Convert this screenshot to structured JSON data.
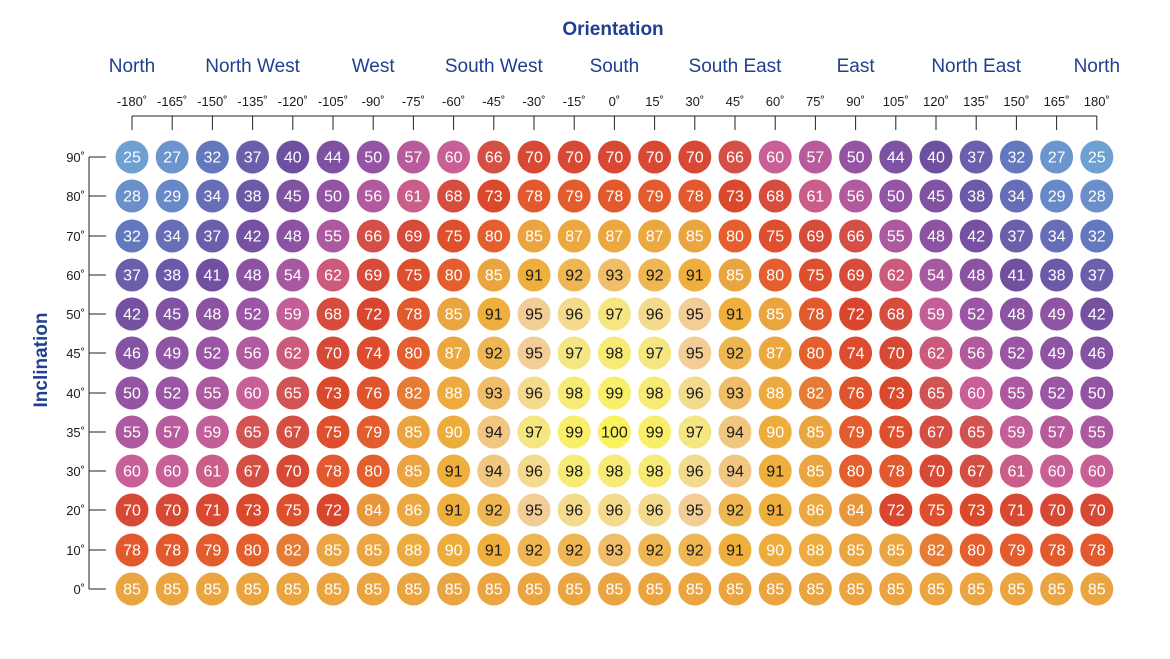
{
  "chart_data": {
    "type": "heatmap",
    "title": "Orientation",
    "ylabel": "Inclination",
    "direction_labels": [
      {
        "label": "North",
        "at": -180
      },
      {
        "label": "North West",
        "at": -135
      },
      {
        "label": "West",
        "at": -90
      },
      {
        "label": "South West",
        "at": -45
      },
      {
        "label": "South",
        "at": 0
      },
      {
        "label": "South East",
        "at": 45
      },
      {
        "label": "East",
        "at": 90
      },
      {
        "label": "North East",
        "at": 135
      },
      {
        "label": "North",
        "at": 180
      }
    ],
    "x": [
      -180,
      -165,
      -150,
      -135,
      -120,
      -105,
      -90,
      -75,
      -60,
      -45,
      -30,
      -15,
      0,
      15,
      30,
      45,
      60,
      75,
      90,
      105,
      120,
      135,
      150,
      165,
      180
    ],
    "x_labels": [
      "-180˚",
      "-165˚",
      "-150˚",
      "-135˚",
      "-120˚",
      "-105˚",
      "-90˚",
      "-75˚",
      "-60˚",
      "-45˚",
      "-30˚",
      "-15˚",
      "0˚",
      "15˚",
      "30˚",
      "45˚",
      "60˚",
      "75˚",
      "90˚",
      "105˚",
      "120˚",
      "135˚",
      "150˚",
      "165˚",
      "180˚"
    ],
    "y": [
      90,
      80,
      70,
      60,
      50,
      45,
      40,
      35,
      30,
      20,
      10,
      0
    ],
    "y_labels": [
      "90˚",
      "80˚",
      "70˚",
      "60˚",
      "50˚",
      "45˚",
      "40˚",
      "35˚",
      "30˚",
      "20˚",
      "10˚",
      "0˚"
    ],
    "values": [
      [
        25,
        27,
        32,
        37,
        40,
        44,
        50,
        57,
        60,
        66,
        70,
        70,
        70,
        70,
        70,
        66,
        60,
        57,
        50,
        44,
        40,
        37,
        32,
        27,
        25
      ],
      [
        28,
        29,
        34,
        38,
        45,
        50,
        56,
        61,
        68,
        73,
        78,
        79,
        78,
        79,
        78,
        73,
        68,
        61,
        56,
        50,
        45,
        38,
        34,
        29,
        28
      ],
      [
        32,
        34,
        37,
        42,
        48,
        55,
        66,
        69,
        75,
        80,
        85,
        87,
        87,
        87,
        85,
        80,
        75,
        69,
        66,
        55,
        48,
        42,
        37,
        34,
        32
      ],
      [
        37,
        38,
        41,
        48,
        54,
        62,
        69,
        75,
        80,
        85,
        91,
        92,
        93,
        92,
        91,
        85,
        80,
        75,
        69,
        62,
        54,
        48,
        41,
        38,
        37
      ],
      [
        42,
        45,
        48,
        52,
        59,
        68,
        72,
        78,
        85,
        91,
        95,
        96,
        97,
        96,
        95,
        91,
        85,
        78,
        72,
        68,
        59,
        52,
        48,
        49,
        42
      ],
      [
        46,
        49,
        52,
        56,
        62,
        70,
        74,
        80,
        87,
        92,
        95,
        97,
        98,
        97,
        95,
        92,
        87,
        80,
        74,
        70,
        62,
        56,
        52,
        49,
        46
      ],
      [
        50,
        52,
        55,
        60,
        65,
        73,
        76,
        82,
        88,
        93,
        96,
        98,
        99,
        98,
        96,
        93,
        88,
        82,
        76,
        73,
        65,
        60,
        55,
        52,
        50
      ],
      [
        55,
        57,
        59,
        65,
        67,
        75,
        79,
        85,
        90,
        94,
        97,
        99,
        100,
        99,
        97,
        94,
        90,
        85,
        79,
        75,
        67,
        65,
        59,
        57,
        55
      ],
      [
        60,
        60,
        61,
        67,
        70,
        78,
        80,
        85,
        91,
        94,
        96,
        98,
        98,
        98,
        96,
        94,
        91,
        85,
        80,
        78,
        70,
        67,
        61,
        60,
        60
      ],
      [
        70,
        70,
        71,
        73,
        75,
        72,
        84,
        86,
        91,
        92,
        95,
        96,
        96,
        96,
        95,
        92,
        91,
        86,
        84,
        72,
        75,
        73,
        71,
        70,
        70
      ],
      [
        78,
        78,
        79,
        80,
        82,
        85,
        85,
        88,
        90,
        91,
        92,
        92,
        93,
        92,
        92,
        91,
        90,
        88,
        85,
        85,
        82,
        80,
        79,
        78,
        78
      ],
      [
        85,
        85,
        85,
        85,
        85,
        85,
        85,
        85,
        85,
        85,
        85,
        85,
        85,
        85,
        85,
        85,
        85,
        85,
        85,
        85,
        85,
        85,
        85,
        85,
        85
      ]
    ]
  }
}
